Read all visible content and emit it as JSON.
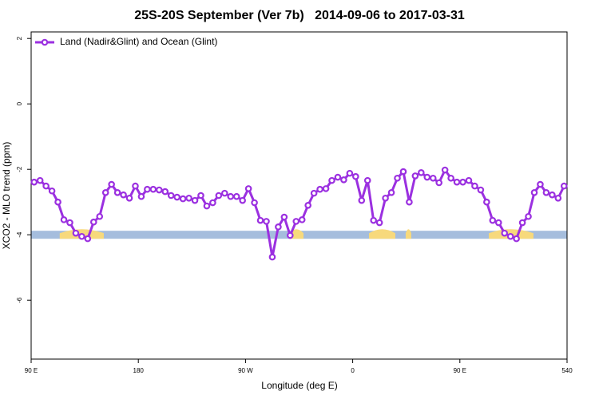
{
  "chart_data": {
    "type": "line",
    "title": "25S-20S September (Ver 7b)   2014-09-06 to 2017-03-31",
    "x_label": "Longitude (deg E)",
    "y_label": "XCO2 - MLO trend (ppm)",
    "x": [
      92.5,
      97.5,
      102.5,
      107.5,
      112.5,
      117.5,
      122.5,
      127.5,
      132.5,
      137.5,
      142.5,
      147.5,
      152.5,
      157.5,
      162.5,
      167.5,
      172.5,
      177.5,
      182.5,
      187.5,
      192.5,
      197.5,
      202.5,
      207.5,
      212.5,
      217.5,
      222.5,
      227.5,
      232.5,
      237.5,
      242.5,
      247.5,
      252.5,
      257.5,
      262.5,
      267.5,
      272.5,
      277.5,
      282.5,
      287.5,
      292.5,
      297.5,
      302.5,
      307.5,
      312.5,
      317.5,
      322.5,
      327.5,
      332.5,
      337.5,
      342.5,
      347.5,
      352.5,
      357.5,
      362.5,
      367.5,
      372.5,
      377.5,
      382.5,
      387.5,
      392.5,
      397.5,
      402.5,
      407.5,
      412.5,
      417.5,
      422.5,
      427.5,
      432.5,
      437.5,
      442.5,
      447.5,
      452.5,
      457.5,
      462.5,
      467.5,
      472.5,
      477.5,
      482.5,
      487.5,
      492.5,
      497.5,
      502.5,
      507.5,
      512.5,
      517.5,
      522.5,
      527.5,
      532.5,
      537.5
    ],
    "series": [
      {
        "name": "Land (Nadir&Glint) and Ocean (Glint)",
        "color": "#9b30e0",
        "values": [
          -2.39,
          -2.34,
          -2.51,
          -2.66,
          -3.0,
          -3.54,
          -3.63,
          -3.95,
          -4.05,
          -4.12,
          -3.61,
          -3.44,
          -2.71,
          -2.46,
          -2.71,
          -2.78,
          -2.88,
          -2.51,
          -2.83,
          -2.61,
          -2.61,
          -2.63,
          -2.68,
          -2.8,
          -2.85,
          -2.9,
          -2.88,
          -2.95,
          -2.8,
          -3.12,
          -3.02,
          -2.8,
          -2.73,
          -2.83,
          -2.83,
          -2.95,
          -2.59,
          -3.02,
          -3.56,
          -3.59,
          -4.68,
          -3.76,
          -3.46,
          -4.02,
          -3.59,
          -3.54,
          -3.1,
          -2.73,
          -2.61,
          -2.59,
          -2.34,
          -2.24,
          -2.32,
          -2.12,
          -2.22,
          -2.95,
          -2.34,
          -3.56,
          -3.63,
          -2.88,
          -2.71,
          -2.27,
          -2.07,
          -3.0,
          -2.2,
          -2.1,
          -2.24,
          -2.27,
          -2.41,
          -2.02,
          -2.27,
          -2.39,
          -2.39,
          -2.34,
          -2.51,
          -2.63,
          -3.0,
          -3.56,
          -3.63,
          -3.95,
          -4.05,
          -4.12,
          -3.63,
          -3.44,
          -2.71,
          -2.46,
          -2.71,
          -2.78,
          -2.88,
          -2.51
        ]
      }
    ],
    "xlim": [
      90,
      540
    ],
    "xticks": [
      {
        "value": 90,
        "label": "90 E"
      },
      180,
      {
        "value": 270,
        "label": "90 W"
      },
      {
        "value": 360,
        "label": "0"
      },
      {
        "value": 450,
        "label": "90 E"
      },
      540
    ],
    "ylim": [
      -7.8,
      2.2
    ],
    "yticks": [
      2,
      0,
      -2,
      -4,
      -6
    ],
    "legend": "top-left",
    "land_band": {
      "y": -4,
      "ocean_color": "#a5bddd",
      "land_color": "#f7d97c",
      "land_ranges": [
        [
          114,
          151
        ],
        [
          306.6,
          318.7
        ],
        [
          373.7,
          395.8
        ],
        [
          404.5,
          409.2
        ],
        [
          474.3,
          511.8
        ]
      ]
    }
  }
}
